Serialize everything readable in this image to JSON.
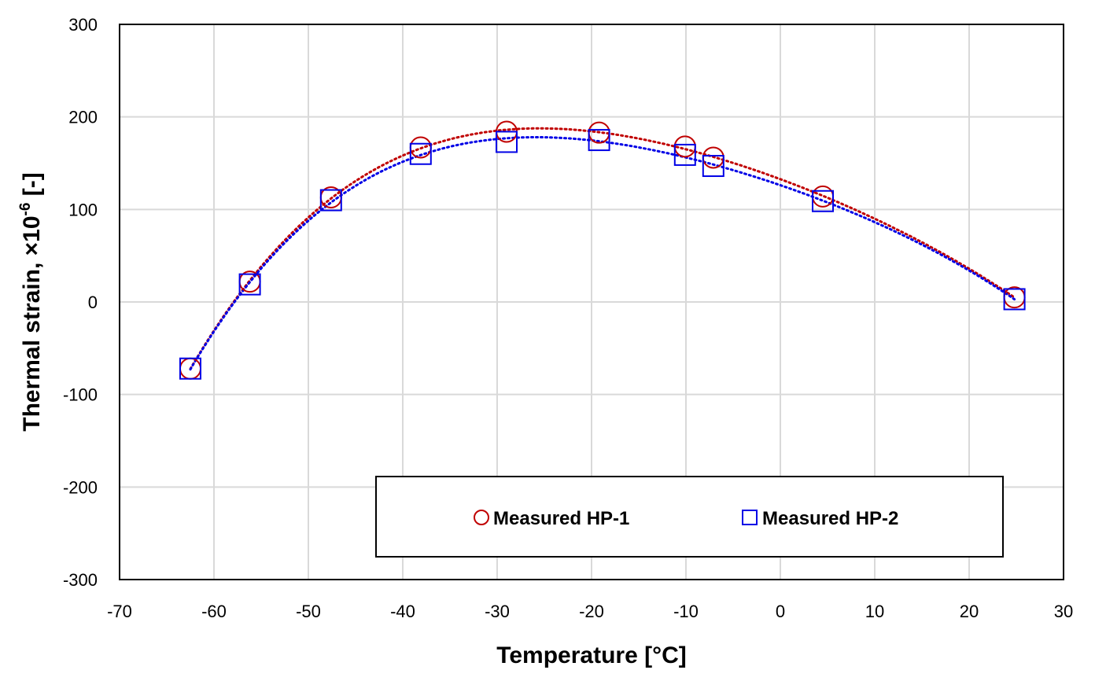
{
  "chart_data": {
    "type": "scatter",
    "title": "",
    "xlabel": "Temperature [°C]",
    "ylabel_main": "Thermal strain,  ×10",
    "ylabel_sup": "-6",
    "ylabel_tail": " [-]",
    "xlim": [
      -70,
      30
    ],
    "ylim": [
      -300,
      300
    ],
    "x_ticks": [
      -70,
      -60,
      -50,
      -40,
      -30,
      -20,
      -10,
      0,
      10,
      20,
      30
    ],
    "y_ticks": [
      -300,
      -200,
      -100,
      0,
      100,
      200,
      300
    ],
    "grid": true,
    "legend_position": "bottom-right",
    "series": [
      {
        "name": "Measured HP-1",
        "marker": "circle",
        "color": "#c00000",
        "x": [
          -62.5,
          -56.2,
          -47.6,
          -38.1,
          -29.0,
          -19.2,
          -10.1,
          -7.1,
          4.5,
          24.8
        ],
        "y": [
          -72,
          22,
          113,
          167,
          184,
          183,
          168,
          156,
          114,
          5
        ],
        "trendline": "dotted"
      },
      {
        "name": "Measured HP-2",
        "marker": "square",
        "color": "#0000e6",
        "x": [
          -62.5,
          -56.2,
          -47.6,
          -38.1,
          -29.0,
          -19.2,
          -10.1,
          -7.1,
          4.5,
          24.8
        ],
        "y": [
          -72,
          19,
          110,
          160,
          173,
          175,
          159,
          147,
          109,
          3
        ],
        "trendline": "dotted"
      }
    ]
  }
}
